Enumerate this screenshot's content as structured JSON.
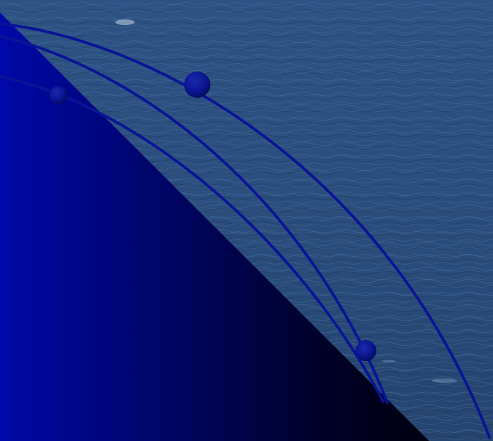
{
  "scene": {
    "background": "ocean-surface-photo",
    "water_color": "#2f5585",
    "water_dark": "#1a3358",
    "water_light": "#4f73a3",
    "panel_color_light": "#0009a3",
    "panel_color_dark": "#000014",
    "curve_color": "#0a1496",
    "curve_shadow": "#050a40",
    "bead_color": "#0b1590"
  }
}
